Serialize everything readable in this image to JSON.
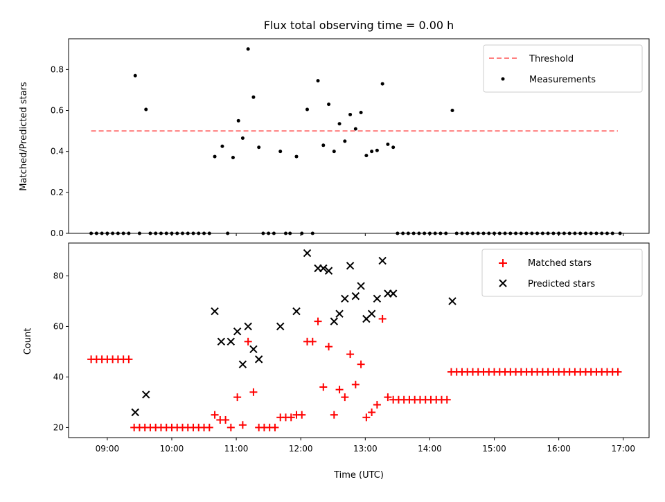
{
  "chart_data": [
    {
      "type": "scatter",
      "title": "Flux total observing time = 0.00 h",
      "xlabel": "",
      "ylabel": "Matched/Predicted stars",
      "xlim": [
        "08:24",
        "17:24"
      ],
      "ylim": [
        0,
        0.95
      ],
      "grid": false,
      "legend_position": "top-right",
      "x_ticks": [],
      "y_ticks": [
        "0.0",
        "0.2",
        "0.4",
        "0.6",
        "0.8"
      ],
      "threshold": {
        "name": "Threshold",
        "value": 0.5,
        "x_range": [
          "08:45",
          "16:55"
        ],
        "color": "#ff7f7f",
        "style": "dashed"
      },
      "series": [
        {
          "name": "Measurements",
          "color": "#000000",
          "marker": "dot",
          "points": [
            [
              "08:45",
              0
            ],
            [
              "08:50",
              0
            ],
            [
              "08:55",
              0
            ],
            [
              "09:00",
              0
            ],
            [
              "09:05",
              0
            ],
            [
              "09:10",
              0
            ],
            [
              "09:15",
              0
            ],
            [
              "09:20",
              0
            ],
            [
              "09:26",
              0.77
            ],
            [
              "09:30",
              0
            ],
            [
              "09:36",
              0.605
            ],
            [
              "09:40",
              0
            ],
            [
              "09:45",
              0
            ],
            [
              "09:50",
              0
            ],
            [
              "09:55",
              0
            ],
            [
              "10:00",
              0
            ],
            [
              "10:05",
              0
            ],
            [
              "10:10",
              0
            ],
            [
              "10:15",
              0
            ],
            [
              "10:20",
              0
            ],
            [
              "10:25",
              0
            ],
            [
              "10:30",
              0
            ],
            [
              "10:35",
              0
            ],
            [
              "10:40",
              0.375
            ],
            [
              "10:47",
              0.425
            ],
            [
              "10:52",
              0
            ],
            [
              "10:57",
              0.37
            ],
            [
              "11:02",
              0.55
            ],
            [
              "11:06",
              0.465
            ],
            [
              "11:11",
              0.9
            ],
            [
              "11:16",
              0.665
            ],
            [
              "11:21",
              0.42
            ],
            [
              "11:25",
              0
            ],
            [
              "11:30",
              0
            ],
            [
              "11:35",
              0
            ],
            [
              "11:41",
              0.4
            ],
            [
              "11:46",
              0
            ],
            [
              "11:50",
              0
            ],
            [
              "11:56",
              0.375
            ],
            [
              "12:01",
              0
            ],
            [
              "12:06",
              0.605
            ],
            [
              "12:11",
              0
            ],
            [
              "12:16",
              0.745
            ],
            [
              "12:21",
              0.43
            ],
            [
              "12:26",
              0.63
            ],
            [
              "12:31",
              0.4
            ],
            [
              "12:36",
              0.535
            ],
            [
              "12:41",
              0.45
            ],
            [
              "12:46",
              0.58
            ],
            [
              "12:51",
              0.51
            ],
            [
              "12:56",
              0.59
            ],
            [
              "13:01",
              0.38
            ],
            [
              "13:06",
              0.4
            ],
            [
              "13:11",
              0.405
            ],
            [
              "13:16",
              0.73
            ],
            [
              "13:21",
              0.435
            ],
            [
              "13:26",
              0.42
            ],
            [
              "13:30",
              0
            ],
            [
              "13:35",
              0
            ],
            [
              "13:40",
              0
            ],
            [
              "13:45",
              0
            ],
            [
              "13:50",
              0
            ],
            [
              "13:55",
              0
            ],
            [
              "14:00",
              0
            ],
            [
              "14:05",
              0
            ],
            [
              "14:10",
              0
            ],
            [
              "14:15",
              0
            ],
            [
              "14:21",
              0.6
            ],
            [
              "14:25",
              0
            ],
            [
              "14:30",
              0
            ],
            [
              "14:35",
              0
            ],
            [
              "14:40",
              0
            ],
            [
              "14:45",
              0
            ],
            [
              "14:50",
              0
            ],
            [
              "14:55",
              0
            ],
            [
              "15:00",
              0
            ],
            [
              "15:05",
              0
            ],
            [
              "15:10",
              0
            ],
            [
              "15:15",
              0
            ],
            [
              "15:20",
              0
            ],
            [
              "15:25",
              0
            ],
            [
              "15:30",
              0
            ],
            [
              "15:35",
              0
            ],
            [
              "15:40",
              0
            ],
            [
              "15:45",
              0
            ],
            [
              "15:50",
              0
            ],
            [
              "15:55",
              0
            ],
            [
              "16:00",
              0
            ],
            [
              "16:05",
              0
            ],
            [
              "16:10",
              0
            ],
            [
              "16:15",
              0
            ],
            [
              "16:20",
              0
            ],
            [
              "16:25",
              0
            ],
            [
              "16:30",
              0
            ],
            [
              "16:35",
              0
            ],
            [
              "16:40",
              0
            ],
            [
              "16:45",
              0
            ],
            [
              "16:50",
              0
            ],
            [
              "16:57",
              0
            ]
          ]
        }
      ],
      "legend": [
        "Threshold",
        "Measurements"
      ]
    },
    {
      "type": "scatter",
      "title": "",
      "xlabel": "Time (UTC)",
      "ylabel": "Count",
      "xlim": [
        "08:24",
        "17:24"
      ],
      "ylim": [
        16,
        93
      ],
      "grid": false,
      "legend_position": "top-right",
      "x_ticks": [
        "09:00",
        "10:00",
        "11:00",
        "12:00",
        "13:00",
        "14:00",
        "15:00",
        "16:00",
        "17:00"
      ],
      "y_ticks": [
        "20",
        "40",
        "60",
        "80"
      ],
      "series": [
        {
          "name": "Matched stars",
          "color": "#ff0000",
          "marker": "plus",
          "points": [
            [
              "08:45",
              47
            ],
            [
              "08:50",
              47
            ],
            [
              "08:55",
              47
            ],
            [
              "09:00",
              47
            ],
            [
              "09:05",
              47
            ],
            [
              "09:10",
              47
            ],
            [
              "09:15",
              47
            ],
            [
              "09:20",
              47
            ],
            [
              "09:25",
              20
            ],
            [
              "09:30",
              20
            ],
            [
              "09:35",
              20
            ],
            [
              "09:40",
              20
            ],
            [
              "09:45",
              20
            ],
            [
              "09:50",
              20
            ],
            [
              "09:55",
              20
            ],
            [
              "10:00",
              20
            ],
            [
              "10:05",
              20
            ],
            [
              "10:10",
              20
            ],
            [
              "10:15",
              20
            ],
            [
              "10:20",
              20
            ],
            [
              "10:25",
              20
            ],
            [
              "10:30",
              20
            ],
            [
              "10:35",
              20
            ],
            [
              "10:40",
              25
            ],
            [
              "10:45",
              23
            ],
            [
              "10:50",
              23
            ],
            [
              "10:55",
              20
            ],
            [
              "11:01",
              32
            ],
            [
              "11:06",
              21
            ],
            [
              "11:11",
              54
            ],
            [
              "11:16",
              34
            ],
            [
              "11:21",
              20
            ],
            [
              "11:26",
              20
            ],
            [
              "11:31",
              20
            ],
            [
              "11:36",
              20
            ],
            [
              "11:41",
              24
            ],
            [
              "11:46",
              24
            ],
            [
              "11:51",
              24
            ],
            [
              "11:56",
              25
            ],
            [
              "12:01",
              25
            ],
            [
              "12:06",
              54
            ],
            [
              "12:11",
              54
            ],
            [
              "12:16",
              62
            ],
            [
              "12:21",
              36
            ],
            [
              "12:26",
              52
            ],
            [
              "12:31",
              25
            ],
            [
              "12:36",
              35
            ],
            [
              "12:41",
              32
            ],
            [
              "12:46",
              49
            ],
            [
              "12:51",
              37
            ],
            [
              "12:56",
              45
            ],
            [
              "13:01",
              24
            ],
            [
              "13:06",
              26
            ],
            [
              "13:11",
              29
            ],
            [
              "13:16",
              63
            ],
            [
              "13:21",
              32
            ],
            [
              "13:26",
              31
            ],
            [
              "13:31",
              31
            ],
            [
              "13:36",
              31
            ],
            [
              "13:41",
              31
            ],
            [
              "13:46",
              31
            ],
            [
              "13:51",
              31
            ],
            [
              "13:56",
              31
            ],
            [
              "14:01",
              31
            ],
            [
              "14:06",
              31
            ],
            [
              "14:11",
              31
            ],
            [
              "14:16",
              31
            ],
            [
              "14:20",
              42
            ],
            [
              "14:25",
              42
            ],
            [
              "14:30",
              42
            ],
            [
              "14:35",
              42
            ],
            [
              "14:40",
              42
            ],
            [
              "14:45",
              42
            ],
            [
              "14:50",
              42
            ],
            [
              "14:55",
              42
            ],
            [
              "15:00",
              42
            ],
            [
              "15:05",
              42
            ],
            [
              "15:10",
              42
            ],
            [
              "15:15",
              42
            ],
            [
              "15:20",
              42
            ],
            [
              "15:25",
              42
            ],
            [
              "15:30",
              42
            ],
            [
              "15:35",
              42
            ],
            [
              "15:40",
              42
            ],
            [
              "15:45",
              42
            ],
            [
              "15:50",
              42
            ],
            [
              "15:55",
              42
            ],
            [
              "16:00",
              42
            ],
            [
              "16:05",
              42
            ],
            [
              "16:10",
              42
            ],
            [
              "16:15",
              42
            ],
            [
              "16:20",
              42
            ],
            [
              "16:25",
              42
            ],
            [
              "16:30",
              42
            ],
            [
              "16:35",
              42
            ],
            [
              "16:40",
              42
            ],
            [
              "16:45",
              42
            ],
            [
              "16:50",
              42
            ],
            [
              "16:55",
              42
            ]
          ]
        },
        {
          "name": "Predicted stars",
          "color": "#000000",
          "marker": "x",
          "points": [
            [
              "09:26",
              26
            ],
            [
              "09:36",
              33
            ],
            [
              "10:40",
              66
            ],
            [
              "10:46",
              54
            ],
            [
              "10:55",
              54
            ],
            [
              "11:01",
              58
            ],
            [
              "11:06",
              45
            ],
            [
              "11:11",
              60
            ],
            [
              "11:16",
              51
            ],
            [
              "11:21",
              47
            ],
            [
              "11:41",
              60
            ],
            [
              "11:56",
              66
            ],
            [
              "12:06",
              89
            ],
            [
              "12:16",
              83
            ],
            [
              "12:21",
              83
            ],
            [
              "12:26",
              82
            ],
            [
              "12:31",
              62
            ],
            [
              "12:36",
              65
            ],
            [
              "12:41",
              71
            ],
            [
              "12:46",
              84
            ],
            [
              "12:51",
              72
            ],
            [
              "12:56",
              76
            ],
            [
              "13:01",
              63
            ],
            [
              "13:06",
              65
            ],
            [
              "13:11",
              71
            ],
            [
              "13:16",
              86
            ],
            [
              "13:21",
              73
            ],
            [
              "13:26",
              73
            ],
            [
              "14:21",
              70
            ]
          ]
        }
      ],
      "legend": [
        "Matched stars",
        "Predicted stars"
      ]
    }
  ]
}
